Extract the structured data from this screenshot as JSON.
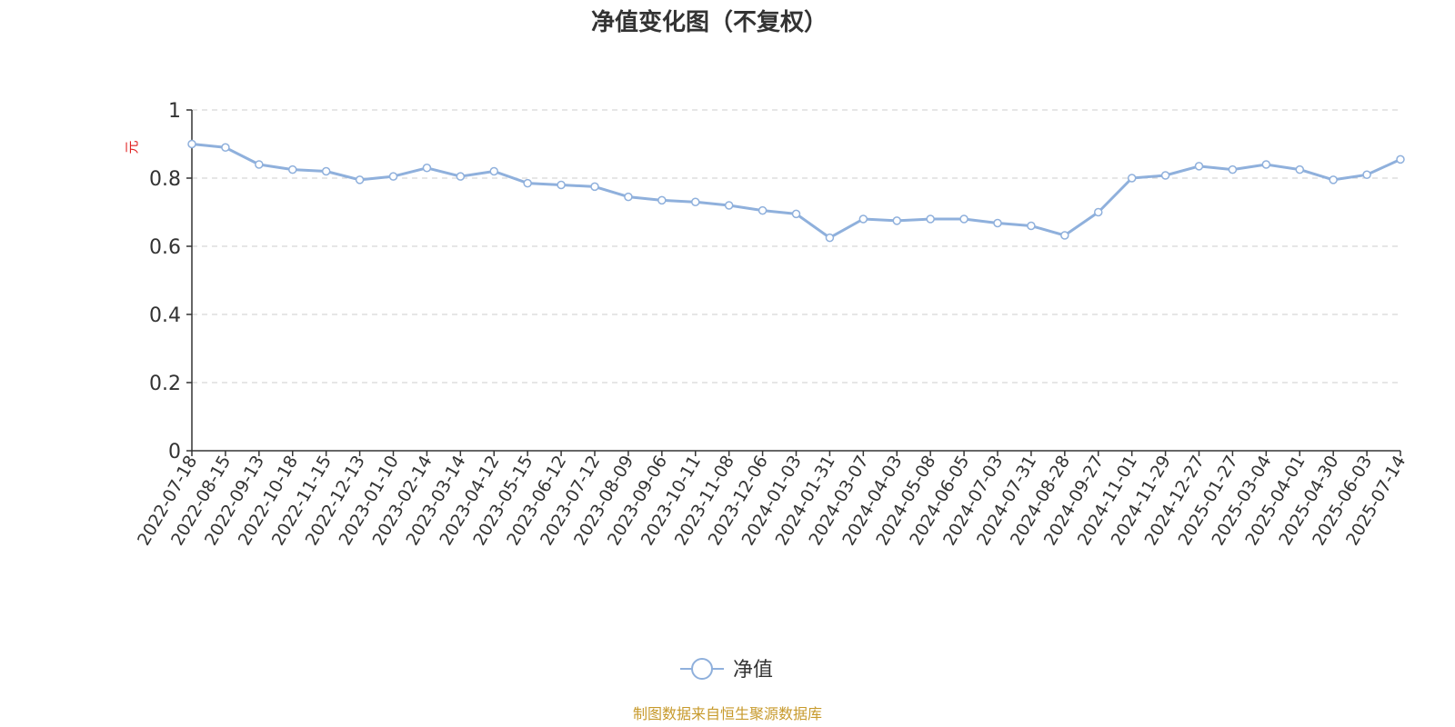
{
  "chart_data": {
    "type": "line",
    "title": "净值变化图（不复权）",
    "ylabel": "元",
    "xlabel": "",
    "ylim": [
      0,
      1
    ],
    "y_ticks": [
      "0",
      "0.2",
      "0.4",
      "0.6",
      "0.8",
      "1"
    ],
    "grid": true,
    "legend_position": "bottom-center",
    "categories": [
      "2022-07-18",
      "2022-08-15",
      "2022-09-13",
      "2022-10-18",
      "2022-11-15",
      "2022-12-13",
      "2023-01-10",
      "2023-02-14",
      "2023-03-14",
      "2023-04-12",
      "2023-05-15",
      "2023-06-12",
      "2023-07-12",
      "2023-08-09",
      "2023-09-06",
      "2023-10-11",
      "2023-11-08",
      "2023-12-06",
      "2024-01-03",
      "2024-01-31",
      "2024-03-07",
      "2024-04-03",
      "2024-05-08",
      "2024-06-05",
      "2024-07-03",
      "2024-07-31",
      "2024-08-28",
      "2024-09-27",
      "2024-11-01",
      "2024-11-29",
      "2024-12-27",
      "2025-01-27",
      "2025-03-04",
      "2025-04-01",
      "2025-04-30",
      "2025-06-03",
      "2025-07-14"
    ],
    "series": [
      {
        "name": "净值",
        "color": "#8fb0dc",
        "values": [
          0.9,
          0.89,
          0.84,
          0.825,
          0.82,
          0.795,
          0.805,
          0.83,
          0.805,
          0.82,
          0.785,
          0.78,
          0.775,
          0.745,
          0.735,
          0.73,
          0.72,
          0.705,
          0.695,
          0.625,
          0.68,
          0.675,
          0.68,
          0.68,
          0.668,
          0.66,
          0.632,
          0.7,
          0.8,
          0.808,
          0.835,
          0.825,
          0.84,
          0.825,
          0.795,
          0.81,
          0.855
        ]
      }
    ]
  },
  "footer": {
    "source_text": "制图数据来自恒生聚源数据库",
    "source_color": "#c79a2c"
  }
}
